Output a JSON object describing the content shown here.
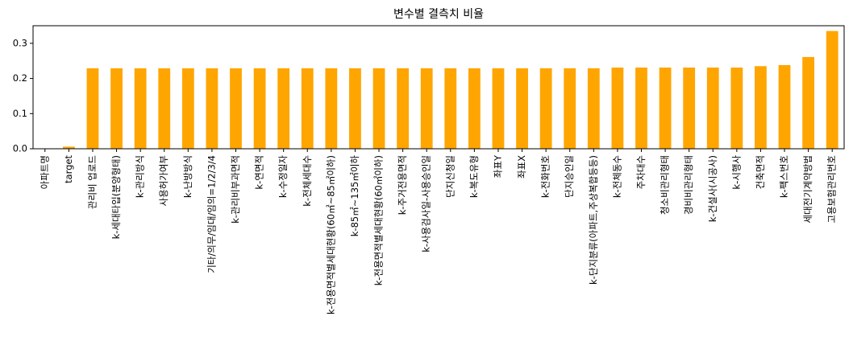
{
  "chart_data": {
    "type": "bar",
    "title": "변수별 결측치 비율",
    "xlabel": "",
    "ylabel": "",
    "ylim": [
      0,
      0.35
    ],
    "yticks": [
      0.0,
      0.1,
      0.2,
      0.3
    ],
    "ytick_labels": [
      "0.0",
      "0.1",
      "0.2",
      "0.3"
    ],
    "grid": false,
    "bar_color": "#ffa500",
    "categories": [
      "아파트명",
      "target",
      "관리비 업로드",
      "k-세대타입(분양형태)",
      "k-관리방식",
      "사용허가여부",
      "k-난방방식",
      "기타/의무/임대/임의=1/2/3/4",
      "k-관리비부과면적",
      "k-연면적",
      "k-수정일자",
      "k-전체세대수",
      "k-전용면적별세대현황(60㎡~85㎡이하)",
      "k-85㎡~135㎡이하",
      "k-전용면적별세대현황(60㎡이하)",
      "k-주거전용면적",
      "k-사용검사일-사용승인일",
      "단지신청일",
      "k-복도유형",
      "좌표Y",
      "좌표X",
      "k-전화번호",
      "단지승인일",
      "k-단지분류(아파트,주상복합등등)",
      "k-전체동수",
      "주차대수",
      "청소비관리형태",
      "경비비관리형태",
      "k-건설사(시공사)",
      "k-시행사",
      "건축면적",
      "k-팩스번호",
      "세대전기계약방법",
      "고용보험관리번호"
    ],
    "values": [
      0.001,
      0.006,
      0.229,
      0.229,
      0.229,
      0.229,
      0.229,
      0.229,
      0.229,
      0.229,
      0.229,
      0.229,
      0.229,
      0.229,
      0.229,
      0.229,
      0.229,
      0.229,
      0.229,
      0.229,
      0.229,
      0.229,
      0.229,
      0.229,
      0.231,
      0.231,
      0.231,
      0.231,
      0.231,
      0.231,
      0.235,
      0.238,
      0.261,
      0.335
    ]
  }
}
